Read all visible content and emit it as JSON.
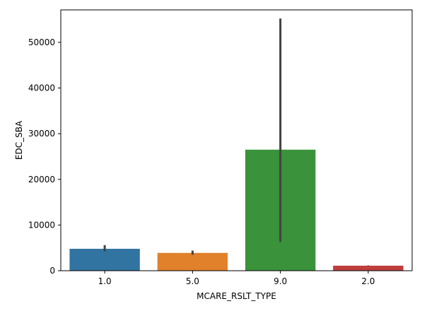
{
  "chart_data": {
    "type": "bar",
    "title": "",
    "xlabel": "MCARE_RSLT_TYPE",
    "ylabel": "EDC_SBA",
    "categories": [
      "1.0",
      "5.0",
      "9.0",
      "2.0"
    ],
    "values": [
      4800,
      3900,
      26500,
      1100
    ],
    "error_low": [
      4200,
      3500,
      6300,
      1050
    ],
    "error_high": [
      5600,
      4400,
      55200,
      1150
    ],
    "colors": [
      "#3274a1",
      "#e1812c",
      "#3a923a",
      "#c03d3e"
    ],
    "ylim": [
      0,
      57100
    ],
    "yticks": [
      0,
      10000,
      20000,
      30000,
      40000,
      50000
    ],
    "ytick_labels": [
      "0",
      "10000",
      "20000",
      "30000",
      "40000",
      "50000"
    ],
    "grid": false,
    "legend": "none"
  }
}
